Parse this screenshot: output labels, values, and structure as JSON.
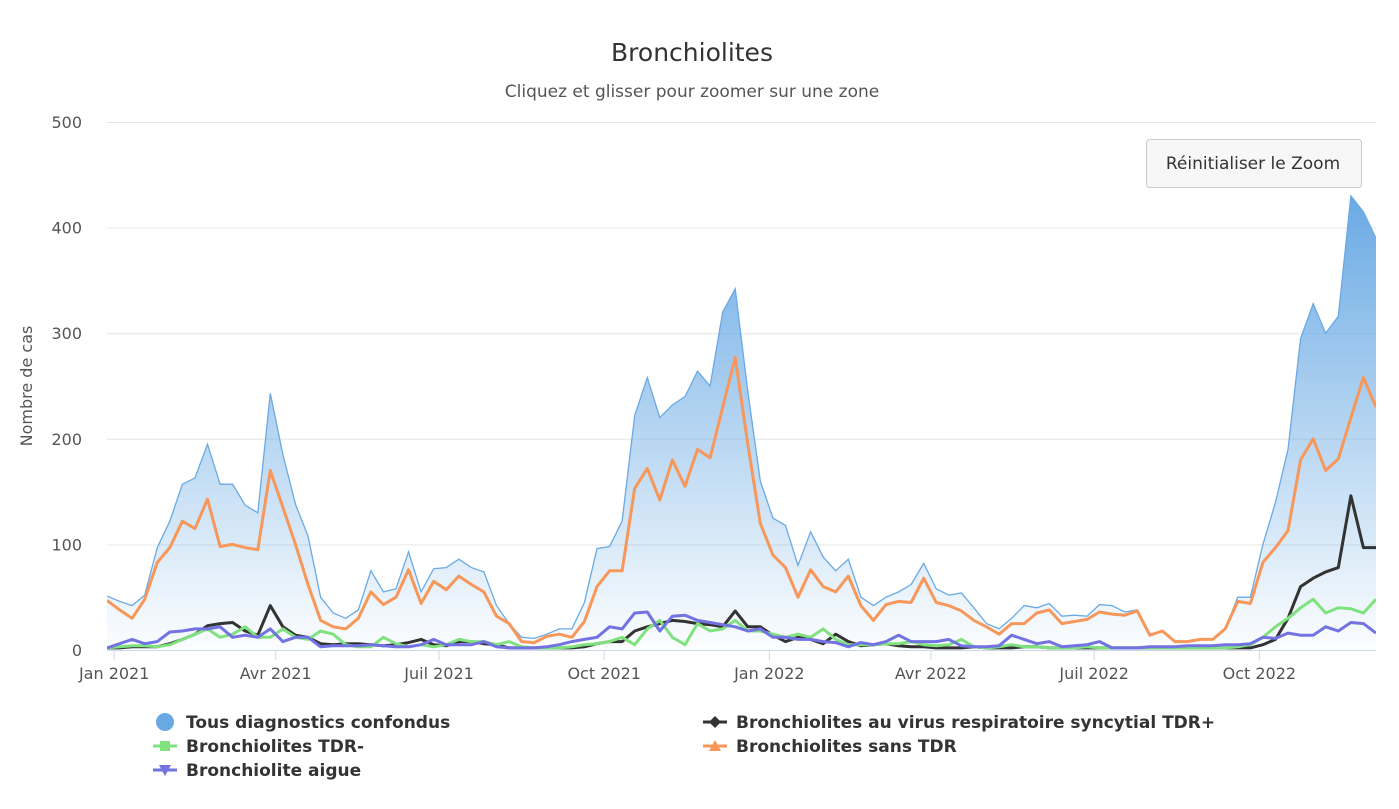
{
  "chart_data": {
    "type": "area",
    "title": "Bronchiolites",
    "subtitle": "Cliquez et glisser pour zoomer sur une zone",
    "ylabel": "Nombre de cas",
    "xlabel": "",
    "ylim": [
      0,
      500
    ],
    "yticks": [
      0,
      100,
      200,
      300,
      400,
      500
    ],
    "xticks": [
      {
        "date": "2021-01-01",
        "label": "Jan 2021"
      },
      {
        "date": "2021-04-01",
        "label": "Avr 2021"
      },
      {
        "date": "2021-07-01",
        "label": "Juil 2021"
      },
      {
        "date": "2021-10-01",
        "label": "Oct 2021"
      },
      {
        "date": "2022-01-01",
        "label": "Jan 2022"
      },
      {
        "date": "2022-04-01",
        "label": "Avr 2022"
      },
      {
        "date": "2022-07-01",
        "label": "Juil 2022"
      },
      {
        "date": "2022-10-01",
        "label": "Oct 2022"
      }
    ],
    "xlim": [
      "2020-12-28",
      "2022-12-05"
    ],
    "grid": true,
    "legend_placement": "bottom",
    "x": [
      "2020-12-28",
      "2021-01-04",
      "2021-01-11",
      "2021-01-18",
      "2021-01-25",
      "2021-02-01",
      "2021-02-08",
      "2021-02-15",
      "2021-02-22",
      "2021-03-01",
      "2021-03-08",
      "2021-03-15",
      "2021-03-22",
      "2021-03-29",
      "2021-04-05",
      "2021-04-12",
      "2021-04-19",
      "2021-04-26",
      "2021-05-03",
      "2021-05-10",
      "2021-05-17",
      "2021-05-24",
      "2021-05-31",
      "2021-06-07",
      "2021-06-14",
      "2021-06-21",
      "2021-06-28",
      "2021-07-05",
      "2021-07-12",
      "2021-07-19",
      "2021-07-26",
      "2021-08-02",
      "2021-08-09",
      "2021-08-16",
      "2021-08-23",
      "2021-08-30",
      "2021-09-06",
      "2021-09-13",
      "2021-09-20",
      "2021-09-27",
      "2021-10-04",
      "2021-10-11",
      "2021-10-18",
      "2021-10-25",
      "2021-11-01",
      "2021-11-08",
      "2021-11-15",
      "2021-11-22",
      "2021-11-29",
      "2021-12-06",
      "2021-12-13",
      "2021-12-20",
      "2021-12-27",
      "2022-01-03",
      "2022-01-10",
      "2022-01-17",
      "2022-01-24",
      "2022-01-31",
      "2022-02-07",
      "2022-02-14",
      "2022-02-21",
      "2022-02-28",
      "2022-03-07",
      "2022-03-14",
      "2022-03-21",
      "2022-03-28",
      "2022-04-04",
      "2022-04-11",
      "2022-04-18",
      "2022-04-25",
      "2022-05-02",
      "2022-05-09",
      "2022-05-16",
      "2022-05-23",
      "2022-05-30",
      "2022-06-06",
      "2022-06-13",
      "2022-06-20",
      "2022-06-27",
      "2022-07-04",
      "2022-07-11",
      "2022-07-18",
      "2022-07-25",
      "2022-08-01",
      "2022-08-08",
      "2022-08-15",
      "2022-08-22",
      "2022-08-29",
      "2022-09-05",
      "2022-09-12",
      "2022-09-19",
      "2022-09-26",
      "2022-10-03",
      "2022-10-10",
      "2022-10-17",
      "2022-10-24",
      "2022-10-31",
      "2022-11-07",
      "2022-11-14",
      "2022-11-21",
      "2022-11-28",
      "2022-12-05"
    ],
    "series": [
      {
        "name": "Tous diagnostics confondus",
        "kind": "area",
        "color": "#6aaae4",
        "marker": "circle",
        "values": [
          51,
          46,
          42,
          52,
          97,
          122,
          157,
          163,
          195,
          157,
          157,
          137,
          130,
          243,
          185,
          138,
          108,
          50,
          35,
          30,
          38,
          75,
          55,
          58,
          93,
          55,
          77,
          78,
          86,
          78,
          74,
          42,
          25,
          12,
          11,
          15,
          20,
          20,
          45,
          96,
          98,
          122,
          222,
          258,
          220,
          232,
          240,
          264,
          250,
          320,
          342,
          245,
          160,
          125,
          118,
          80,
          112,
          88,
          75,
          86,
          50,
          42,
          50,
          55,
          62,
          82,
          58,
          52,
          54,
          40,
          25,
          20,
          30,
          42,
          40,
          44,
          32,
          33,
          32,
          43,
          42,
          36,
          38,
          15,
          18,
          8,
          8,
          10,
          10,
          20,
          50,
          50,
          100,
          140,
          190,
          295,
          328,
          300,
          316,
          430,
          415,
          390
        ]
      },
      {
        "name": "Bronchiolites au virus respiratoire syncytial TDR+",
        "kind": "line",
        "color": "#333333",
        "marker": "diamond",
        "values": [
          2,
          2,
          3,
          3,
          3,
          6,
          10,
          15,
          23,
          25,
          26,
          18,
          14,
          42,
          22,
          14,
          12,
          6,
          5,
          6,
          6,
          5,
          4,
          5,
          7,
          10,
          5,
          4,
          8,
          8,
          6,
          5,
          2,
          2,
          2,
          2,
          2,
          2,
          3,
          6,
          8,
          8,
          18,
          22,
          25,
          28,
          27,
          25,
          24,
          22,
          37,
          22,
          22,
          14,
          8,
          12,
          10,
          6,
          15,
          8,
          4,
          5,
          6,
          4,
          3,
          3,
          2,
          2,
          2,
          3,
          2,
          2,
          2,
          3,
          3,
          2,
          2,
          2,
          2,
          2,
          2,
          2,
          2,
          2,
          2,
          2,
          2,
          2,
          2,
          2,
          2,
          2,
          5,
          10,
          30,
          60,
          68,
          74,
          78,
          146,
          97,
          97
        ]
      },
      {
        "name": "Bronchiolites TDR-",
        "kind": "line",
        "color": "#7fe27f",
        "marker": "square",
        "values": [
          2,
          3,
          4,
          4,
          3,
          5,
          10,
          15,
          20,
          12,
          15,
          22,
          12,
          12,
          20,
          12,
          10,
          18,
          15,
          5,
          3,
          3,
          12,
          6,
          3,
          5,
          3,
          5,
          10,
          8,
          8,
          5,
          8,
          3,
          2,
          2,
          2,
          3,
          5,
          6,
          8,
          12,
          5,
          20,
          28,
          12,
          5,
          25,
          18,
          20,
          28,
          18,
          18,
          15,
          12,
          15,
          12,
          20,
          10,
          5,
          5,
          5,
          6,
          6,
          8,
          5,
          4,
          5,
          10,
          3,
          2,
          3,
          5,
          3,
          3,
          2,
          2,
          2,
          3,
          2,
          2,
          2,
          2,
          2,
          2,
          2,
          2,
          2,
          2,
          2,
          3,
          5,
          12,
          22,
          30,
          40,
          48,
          35,
          40,
          39,
          35,
          48
        ]
      },
      {
        "name": "Bronchiolites sans TDR",
        "kind": "line",
        "color": "#f7975a",
        "marker": "triangle",
        "values": [
          47,
          38,
          30,
          48,
          83,
          97,
          122,
          115,
          143,
          98,
          100,
          97,
          95,
          170,
          135,
          100,
          62,
          28,
          22,
          20,
          30,
          55,
          43,
          50,
          76,
          44,
          65,
          57,
          70,
          62,
          55,
          32,
          25,
          8,
          7,
          13,
          15,
          12,
          27,
          60,
          75,
          75,
          153,
          172,
          142,
          180,
          155,
          190,
          182,
          230,
          277,
          195,
          120,
          90,
          78,
          50,
          76,
          60,
          55,
          70,
          42,
          28,
          43,
          46,
          45,
          68,
          45,
          42,
          37,
          28,
          22,
          15,
          25,
          25,
          35,
          38,
          25,
          27,
          29,
          36,
          34,
          33,
          37,
          14,
          18,
          8,
          8,
          10,
          10,
          20,
          46,
          44,
          83,
          97,
          113,
          180,
          200,
          170,
          181,
          220,
          258,
          230
        ]
      },
      {
        "name": "Bronchiolite aigue",
        "kind": "line",
        "color": "#7272e2",
        "marker": "triangle-down",
        "values": [
          2,
          6,
          10,
          6,
          8,
          17,
          18,
          20,
          20,
          22,
          12,
          14,
          12,
          20,
          8,
          12,
          12,
          3,
          4,
          4,
          4,
          5,
          4,
          3,
          3,
          5,
          10,
          5,
          5,
          5,
          8,
          3,
          2,
          2,
          2,
          3,
          5,
          8,
          10,
          12,
          22,
          20,
          35,
          36,
          18,
          32,
          33,
          28,
          26,
          24,
          22,
          18,
          20,
          12,
          12,
          10,
          10,
          8,
          7,
          3,
          7,
          5,
          8,
          14,
          8,
          8,
          8,
          10,
          4,
          3,
          3,
          4,
          14,
          10,
          6,
          8,
          3,
          4,
          5,
          8,
          2,
          2,
          2,
          3,
          3,
          3,
          4,
          4,
          4,
          5,
          5,
          6,
          12,
          11,
          16,
          14,
          14,
          22,
          18,
          26,
          25,
          16
        ]
      }
    ]
  },
  "reset_zoom_label": "Réinitialiser le Zoom"
}
